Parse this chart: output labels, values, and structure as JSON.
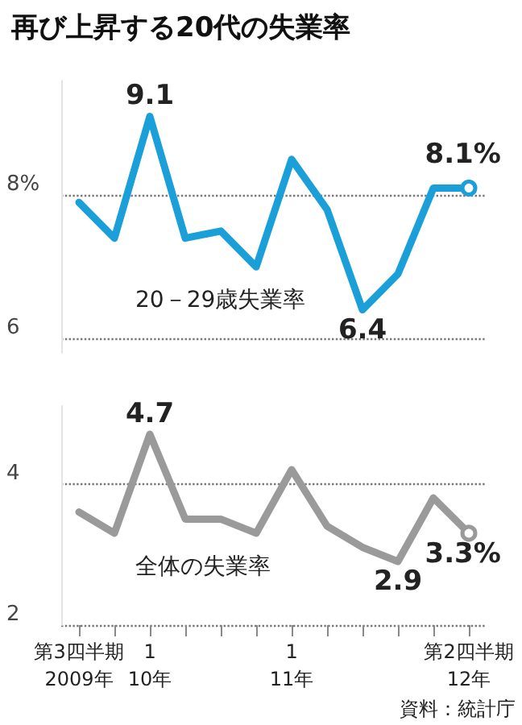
{
  "chart_data": [
    {
      "type": "line",
      "title": "再び上昇する20代の失業率",
      "categories": [
        null,
        null,
        null,
        null,
        null,
        null,
        null,
        null,
        null,
        null,
        null,
        null
      ],
      "series": [
        {
          "name": "20－29歳失業率",
          "color": "#1a9fd8",
          "values": [
            7.9,
            7.4,
            9.1,
            7.4,
            7.5,
            7.0,
            8.5,
            7.8,
            6.4,
            6.9,
            8.1,
            8.1
          ],
          "value_labels": [
            null,
            null,
            "9.1",
            null,
            null,
            null,
            null,
            null,
            "6.4",
            null,
            null,
            "8.1%"
          ]
        }
      ],
      "ylim": [
        5.8,
        9.6
      ],
      "yticks": [
        6,
        {
          "value": 8,
          "label": "8%"
        }
      ],
      "grid": "y",
      "tick_labels": "y",
      "marker": "none",
      "line_style": "solid"
    },
    {
      "type": "line",
      "categories": [
        "第3四半期\n2009年",
        null,
        "1\n10年",
        null,
        null,
        null,
        "1\n11年",
        null,
        null,
        null,
        null,
        "第2四半期\n12年"
      ],
      "series": [
        {
          "name": "全体の失業率",
          "color": "#9a9a9a",
          "values": [
            3.6,
            3.3,
            4.7,
            3.5,
            3.5,
            3.3,
            4.2,
            3.4,
            3.1,
            2.9,
            3.8,
            3.3
          ],
          "value_labels": [
            null,
            null,
            "4.7",
            null,
            null,
            null,
            null,
            null,
            null,
            "2.9",
            null,
            "3.3%"
          ]
        }
      ],
      "ylim": [
        2,
        5.1
      ],
      "yticks": [
        2,
        4
      ],
      "grid": "y",
      "marker": "none",
      "line_style": "solid",
      "annotations": [
        "資料：統計庁"
      ]
    }
  ]
}
